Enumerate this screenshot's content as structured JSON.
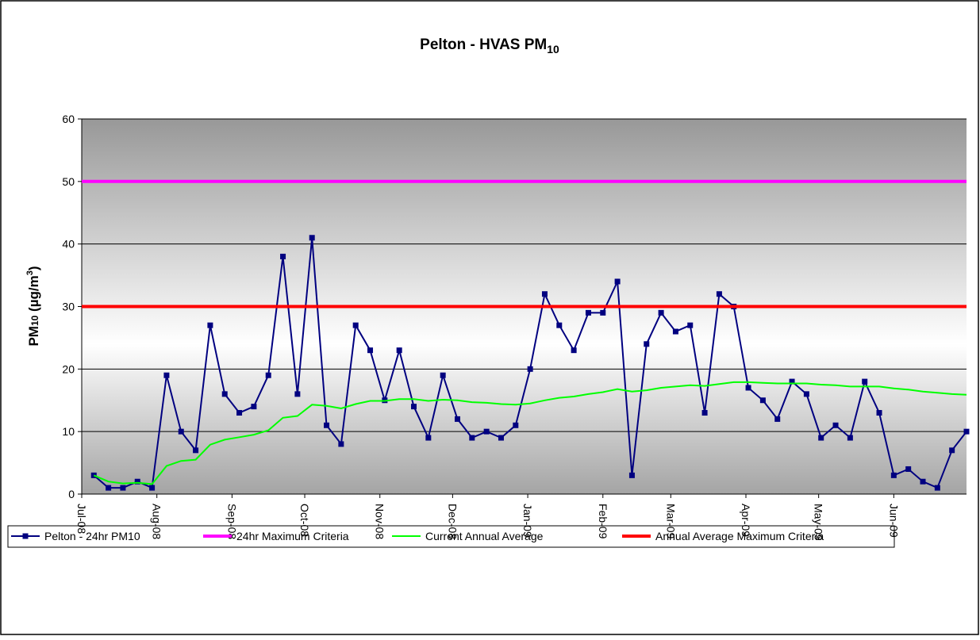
{
  "chart_data": {
    "type": "line",
    "title": "Pelton - HVAS PM",
    "title_subscript": "10",
    "ylabel": [
      "PM",
      "10",
      " (µg/m",
      "3",
      ")"
    ],
    "xlim": [
      "2008-07-01",
      "2009-07-01"
    ],
    "xticks": [
      {
        "value": "2008-07-01",
        "label": "Jul-08"
      },
      {
        "value": "2008-08-01",
        "label": "Aug-08"
      },
      {
        "value": "2008-09-01",
        "label": "Sep-08"
      },
      {
        "value": "2008-10-01",
        "label": "Oct-08"
      },
      {
        "value": "2008-11-01",
        "label": "Nov-08"
      },
      {
        "value": "2008-12-01",
        "label": "Dec-08"
      },
      {
        "value": "2009-01-01",
        "label": "Jan-09"
      },
      {
        "value": "2009-02-01",
        "label": "Feb-09"
      },
      {
        "value": "2009-03-01",
        "label": "Mar-09"
      },
      {
        "value": "2009-04-01",
        "label": "Apr-09"
      },
      {
        "value": "2009-05-01",
        "label": "May-09"
      },
      {
        "value": "2009-06-01",
        "label": "Jun-09"
      }
    ],
    "ylim": [
      0,
      60
    ],
    "yticks": [
      0,
      10,
      20,
      30,
      40,
      50,
      60
    ],
    "grid": true,
    "x": [
      "2008-07-06",
      "2008-07-12",
      "2008-07-18",
      "2008-07-24",
      "2008-07-30",
      "2008-08-05",
      "2008-08-11",
      "2008-08-17",
      "2008-08-23",
      "2008-08-29",
      "2008-09-04",
      "2008-09-10",
      "2008-09-16",
      "2008-09-22",
      "2008-09-28",
      "2008-10-04",
      "2008-10-10",
      "2008-10-16",
      "2008-10-22",
      "2008-10-28",
      "2008-11-03",
      "2008-11-09",
      "2008-11-15",
      "2008-11-21",
      "2008-11-27",
      "2008-12-03",
      "2008-12-09",
      "2008-12-15",
      "2008-12-21",
      "2008-12-27",
      "2009-01-02",
      "2009-01-08",
      "2009-01-14",
      "2009-01-20",
      "2009-01-26",
      "2009-02-01",
      "2009-02-07",
      "2009-02-13",
      "2009-02-19",
      "2009-02-25",
      "2009-03-03",
      "2009-03-09",
      "2009-03-15",
      "2009-03-21",
      "2009-03-27",
      "2009-04-02",
      "2009-04-08",
      "2009-04-14",
      "2009-04-20",
      "2009-04-26",
      "2009-05-02",
      "2009-05-08",
      "2009-05-14",
      "2009-05-20",
      "2009-05-26",
      "2009-06-01",
      "2009-06-07",
      "2009-06-13",
      "2009-06-19",
      "2009-06-25",
      "2009-07-01"
    ],
    "series": [
      {
        "name": "Pelton - 24hr PM10",
        "color": "#000080",
        "marker": "square",
        "values": [
          3,
          1,
          1,
          2,
          1,
          19,
          10,
          7,
          27,
          16,
          13,
          14,
          19,
          38,
          16,
          41,
          11,
          8,
          27,
          23,
          15,
          23,
          14,
          9,
          19,
          12,
          9,
          10,
          9,
          11,
          20,
          32,
          27,
          23,
          29,
          29,
          34,
          3,
          24,
          29,
          26,
          27,
          13,
          32,
          30,
          17,
          15,
          12,
          18,
          16,
          9,
          11,
          9,
          18,
          13,
          3,
          4,
          2,
          1,
          7,
          10
        ]
      },
      {
        "name": "24hr Maximum Criteria",
        "color": "#ff00ff",
        "x": [
          "2008-07-01",
          "2009-07-01"
        ],
        "values": [
          50,
          50
        ]
      },
      {
        "name": "Current Annual Average",
        "color": "#00ff00",
        "values": [
          3,
          2,
          1.7,
          1.8,
          1.6,
          4.5,
          5.3,
          5.5,
          7.9,
          8.7,
          9.1,
          9.5,
          10.2,
          12.2,
          12.5,
          14.3,
          14.1,
          13.7,
          14.4,
          14.9,
          14.9,
          15.2,
          15.2,
          14.9,
          15.1,
          15,
          14.7,
          14.6,
          14.4,
          14.3,
          14.5,
          15,
          15.4,
          15.6,
          16,
          16.3,
          16.8,
          16.4,
          16.6,
          17,
          17.2,
          17.4,
          17.3,
          17.6,
          17.9,
          17.9,
          17.8,
          17.7,
          17.7,
          17.7,
          17.5,
          17.4,
          17.2,
          17.2,
          17.2,
          16.9,
          16.7,
          16.4,
          16.2,
          16,
          15.9
        ]
      },
      {
        "name": "Annual Average Maximum Criteria",
        "color": "#ff0000",
        "x": [
          "2008-07-01",
          "2009-07-01"
        ],
        "values": [
          30,
          30
        ]
      }
    ]
  }
}
